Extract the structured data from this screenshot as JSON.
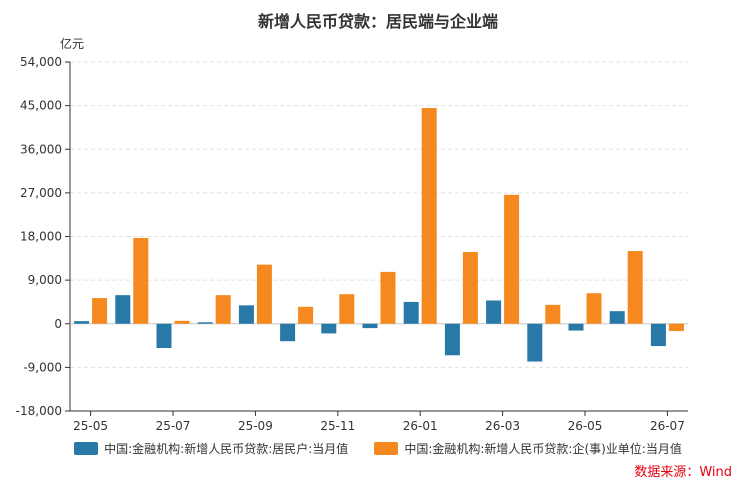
{
  "chart_data": {
    "type": "bar",
    "title": "新增人民币贷款：居民端与企业端",
    "ylabel": "亿元",
    "ylim": [
      -18000,
      54000
    ],
    "yticks": [
      -18000,
      -9000,
      0,
      9000,
      18000,
      27000,
      36000,
      45000,
      54000
    ],
    "ytick_labels": [
      "-18,000",
      "-9,000",
      "0",
      "9,000",
      "18,000",
      "27,000",
      "36,000",
      "45,000",
      "54,000"
    ],
    "categories": [
      "25-05",
      "25-06",
      "25-07",
      "25-08",
      "25-09",
      "25-10",
      "25-11",
      "25-12",
      "26-01",
      "26-02",
      "26-03",
      "26-04",
      "26-05",
      "26-06",
      "26-07"
    ],
    "xtick_labels": [
      "25-05",
      "25-07",
      "25-09",
      "25-11",
      "26-01",
      "26-03",
      "26-05",
      "26-07"
    ],
    "grid": true,
    "legend_position": "bottom",
    "series": [
      {
        "name": "中国:金融机构:新增人民币贷款:居民户:当月值",
        "color": "#2878a8",
        "values": [
          540,
          5900,
          -5000,
          300,
          3800,
          -3600,
          -2000,
          -900,
          4500,
          -6500,
          4800,
          -7800,
          -1400,
          2600,
          -4600
        ]
      },
      {
        "name": "中国:金融机构:新增人民币贷款:企(事)业单位:当月值",
        "color": "#f5891f",
        "values": [
          5300,
          17700,
          600,
          5900,
          12200,
          3500,
          6100,
          10700,
          44500,
          14800,
          26600,
          3900,
          6300,
          15000,
          -1500
        ]
      }
    ],
    "source": "数据来源：Wind"
  }
}
